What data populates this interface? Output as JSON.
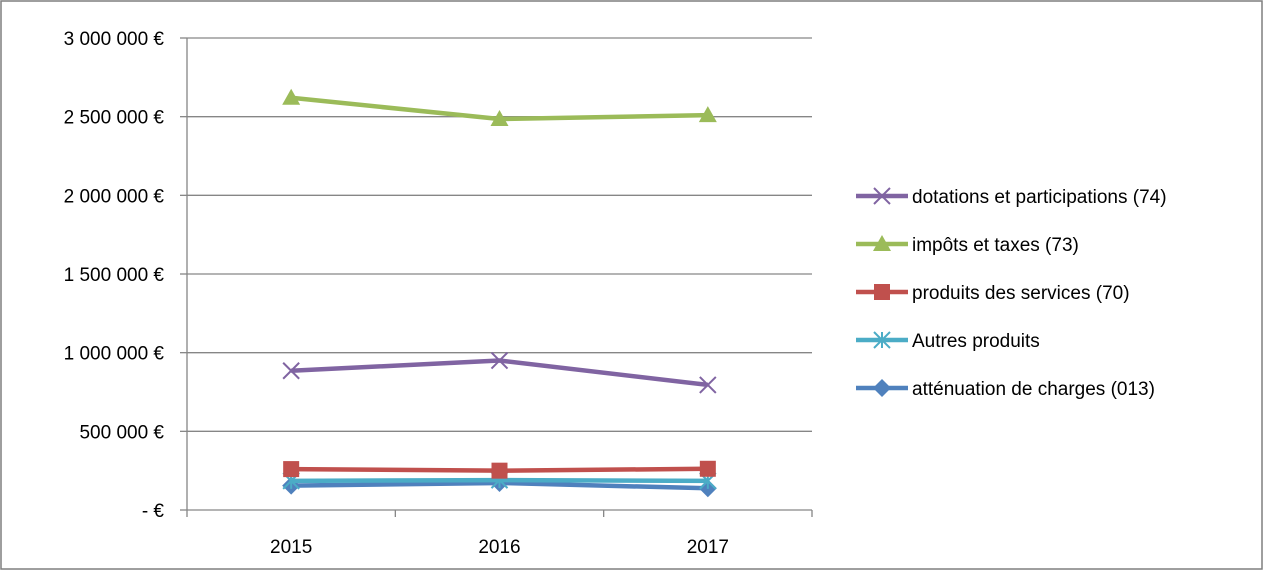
{
  "chart_data": {
    "type": "line",
    "categories": [
      "2015",
      "2016",
      "2017"
    ],
    "ylim": [
      0,
      3000000
    ],
    "yticks": [
      {
        "value": 0,
        "label": "-   €"
      },
      {
        "value": 500000,
        "label": "500 000 €"
      },
      {
        "value": 1000000,
        "label": "1 000 000 €"
      },
      {
        "value": 1500000,
        "label": "1 500 000 €"
      },
      {
        "value": 2000000,
        "label": "2 000 000 €"
      },
      {
        "value": 2500000,
        "label": "2 500 000 €"
      },
      {
        "value": 3000000,
        "label": "3 000 000 €"
      }
    ],
    "grid": true,
    "legend_position": "right",
    "series": [
      {
        "name": "dotations et participations (74)",
        "color": "#8064a2",
        "marker": "x",
        "values": [
          885000,
          950000,
          795000
        ]
      },
      {
        "name": "impôts et taxes (73)",
        "color": "#9bbb59",
        "marker": "triangle",
        "values": [
          2620000,
          2485000,
          2510000
        ]
      },
      {
        "name": "produits des services (70)",
        "color": "#c0504d",
        "marker": "square",
        "values": [
          260000,
          250000,
          262000
        ]
      },
      {
        "name": "Autres produits",
        "color": "#4bacc6",
        "marker": "asterisk",
        "values": [
          185000,
          190000,
          185000
        ]
      },
      {
        "name": "atténuation de charges (013)",
        "color": "#4f81bd",
        "marker": "diamond",
        "values": [
          155000,
          172000,
          138000
        ]
      }
    ]
  }
}
